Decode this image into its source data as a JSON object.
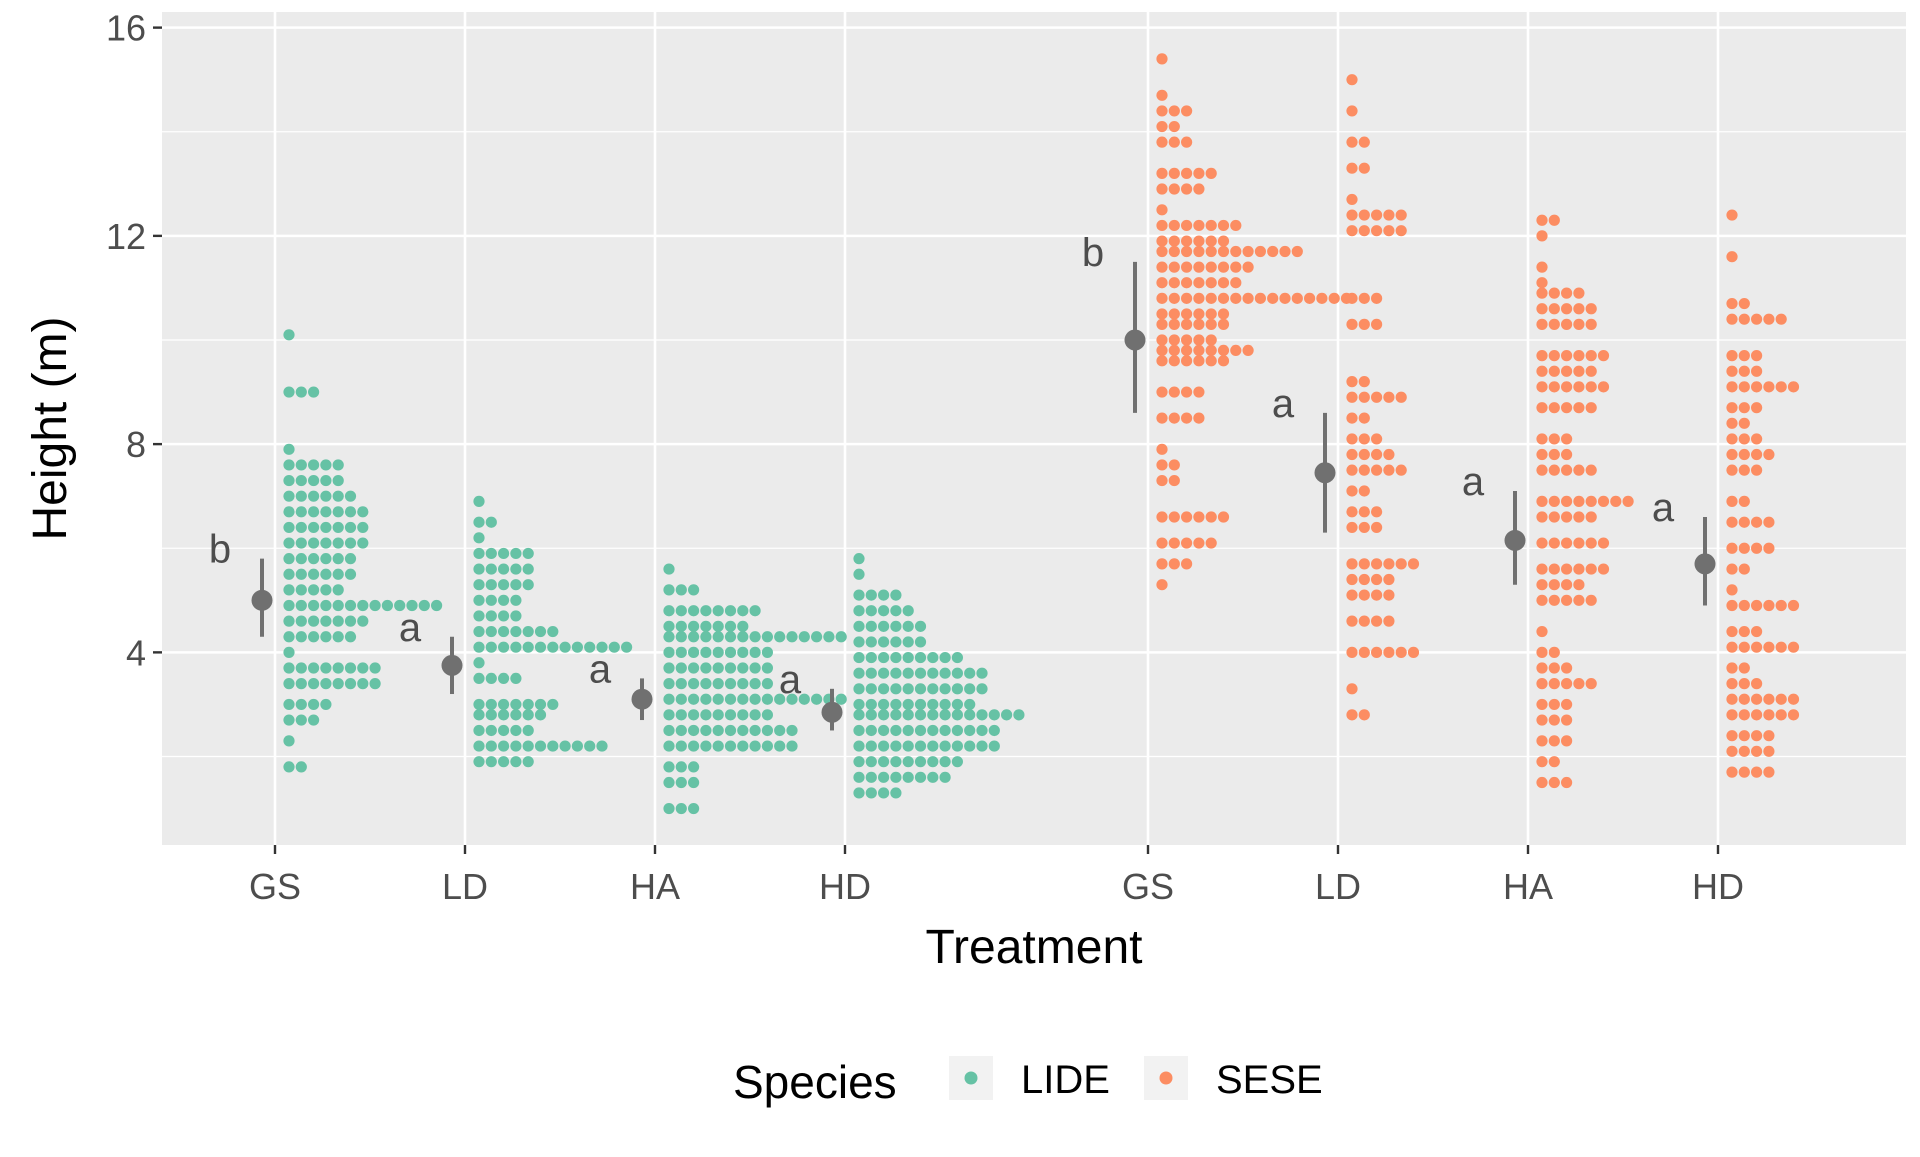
{
  "chart_data": {
    "type": "dotplot",
    "title": "",
    "xlabel": "Treatment",
    "ylabel": "Height (m)",
    "ylim": [
      0.3,
      16.3
    ],
    "yticks": [
      "4",
      "8",
      "12",
      "16"
    ],
    "categories": [
      "GS",
      "LD",
      "HA",
      "HD",
      "GS",
      "LD",
      "HA",
      "HD"
    ],
    "legend": {
      "title": "Species",
      "position": "bottom",
      "items": [
        {
          "label": "LIDE",
          "color": "#66c2a5"
        },
        {
          "label": "SESE",
          "color": "#fc8d62"
        }
      ]
    },
    "summary_color": "#707070",
    "groups": [
      {
        "species": "LIDE",
        "treatment": "GS",
        "mean": 5.0,
        "low": 4.3,
        "high": 5.8,
        "letter": "b",
        "bins": [
          [
            10.1,
            1
          ],
          [
            9.0,
            3
          ],
          [
            7.9,
            1
          ],
          [
            7.6,
            5
          ],
          [
            7.3,
            5
          ],
          [
            7.0,
            6
          ],
          [
            6.7,
            7
          ],
          [
            6.4,
            7
          ],
          [
            6.1,
            7
          ],
          [
            5.8,
            6
          ],
          [
            5.5,
            6
          ],
          [
            5.2,
            5
          ],
          [
            4.9,
            13
          ],
          [
            4.6,
            7
          ],
          [
            4.3,
            6
          ],
          [
            4.0,
            1
          ],
          [
            3.7,
            8
          ],
          [
            3.4,
            8
          ],
          [
            3.0,
            4
          ],
          [
            2.7,
            3
          ],
          [
            2.3,
            1
          ],
          [
            1.8,
            2
          ]
        ]
      },
      {
        "species": "LIDE",
        "treatment": "LD",
        "mean": 3.75,
        "low": 3.2,
        "high": 4.3,
        "letter": "a",
        "bins": [
          [
            6.9,
            1
          ],
          [
            6.5,
            2
          ],
          [
            6.2,
            1
          ],
          [
            5.9,
            5
          ],
          [
            5.6,
            5
          ],
          [
            5.3,
            5
          ],
          [
            5.0,
            4
          ],
          [
            4.7,
            4
          ],
          [
            4.4,
            7
          ],
          [
            4.1,
            13
          ],
          [
            3.8,
            1
          ],
          [
            3.5,
            4
          ],
          [
            3.0,
            7
          ],
          [
            2.8,
            6
          ],
          [
            2.5,
            5
          ],
          [
            2.2,
            11
          ],
          [
            1.9,
            5
          ]
        ]
      },
      {
        "species": "LIDE",
        "treatment": "HA",
        "mean": 3.1,
        "low": 2.7,
        "high": 3.5,
        "letter": "a",
        "bins": [
          [
            5.6,
            1
          ],
          [
            5.2,
            3
          ],
          [
            4.8,
            8
          ],
          [
            4.5,
            7
          ],
          [
            4.3,
            15
          ],
          [
            4.0,
            9
          ],
          [
            3.7,
            9
          ],
          [
            3.4,
            9
          ],
          [
            3.1,
            15
          ],
          [
            2.8,
            9
          ],
          [
            2.5,
            11
          ],
          [
            2.2,
            11
          ],
          [
            1.8,
            3
          ],
          [
            1.5,
            3
          ],
          [
            1.0,
            3
          ]
        ]
      },
      {
        "species": "LIDE",
        "treatment": "HD",
        "mean": 2.85,
        "low": 2.5,
        "high": 3.3,
        "letter": "a",
        "bins": [
          [
            5.8,
            1
          ],
          [
            5.5,
            1
          ],
          [
            5.1,
            4
          ],
          [
            4.8,
            5
          ],
          [
            4.5,
            6
          ],
          [
            4.2,
            6
          ],
          [
            3.9,
            9
          ],
          [
            3.6,
            11
          ],
          [
            3.3,
            11
          ],
          [
            3.0,
            10
          ],
          [
            2.8,
            14
          ],
          [
            2.5,
            12
          ],
          [
            2.2,
            12
          ],
          [
            1.9,
            9
          ],
          [
            1.6,
            8
          ],
          [
            1.3,
            4
          ]
        ]
      },
      {
        "species": "SESE",
        "treatment": "GS",
        "mean": 10.0,
        "low": 8.6,
        "high": 11.5,
        "letter": "b",
        "bins": [
          [
            15.4,
            1
          ],
          [
            14.7,
            1
          ],
          [
            14.4,
            3
          ],
          [
            14.1,
            2
          ],
          [
            13.8,
            3
          ],
          [
            13.2,
            5
          ],
          [
            12.9,
            4
          ],
          [
            12.5,
            1
          ],
          [
            12.2,
            7
          ],
          [
            11.9,
            6
          ],
          [
            11.7,
            12
          ],
          [
            11.4,
            8
          ],
          [
            11.1,
            7
          ],
          [
            10.8,
            16
          ],
          [
            10.5,
            6
          ],
          [
            10.3,
            6
          ],
          [
            10.0,
            5
          ],
          [
            9.8,
            8
          ],
          [
            9.6,
            6
          ],
          [
            9.0,
            4
          ],
          [
            8.5,
            4
          ],
          [
            7.9,
            1
          ],
          [
            7.6,
            2
          ],
          [
            7.3,
            2
          ],
          [
            6.6,
            6
          ],
          [
            6.1,
            5
          ],
          [
            5.7,
            3
          ],
          [
            5.3,
            1
          ]
        ]
      },
      {
        "species": "SESE",
        "treatment": "LD",
        "mean": 7.45,
        "low": 6.3,
        "high": 8.6,
        "letter": "a",
        "bins": [
          [
            15.0,
            1
          ],
          [
            14.4,
            1
          ],
          [
            13.8,
            2
          ],
          [
            13.3,
            2
          ],
          [
            12.7,
            1
          ],
          [
            12.4,
            5
          ],
          [
            12.1,
            5
          ],
          [
            10.8,
            3
          ],
          [
            10.3,
            3
          ],
          [
            9.2,
            2
          ],
          [
            8.9,
            5
          ],
          [
            8.5,
            2
          ],
          [
            8.1,
            3
          ],
          [
            7.8,
            4
          ],
          [
            7.5,
            5
          ],
          [
            7.1,
            2
          ],
          [
            6.7,
            3
          ],
          [
            6.4,
            3
          ],
          [
            5.7,
            6
          ],
          [
            5.4,
            4
          ],
          [
            5.1,
            4
          ],
          [
            4.6,
            4
          ],
          [
            4.0,
            6
          ],
          [
            3.3,
            1
          ],
          [
            2.8,
            2
          ]
        ]
      },
      {
        "species": "SESE",
        "treatment": "HA",
        "mean": 6.15,
        "low": 5.3,
        "high": 7.1,
        "letter": "a",
        "bins": [
          [
            12.3,
            2
          ],
          [
            12.0,
            1
          ],
          [
            11.4,
            1
          ],
          [
            11.1,
            1
          ],
          [
            10.9,
            4
          ],
          [
            10.6,
            5
          ],
          [
            10.3,
            5
          ],
          [
            9.7,
            6
          ],
          [
            9.4,
            5
          ],
          [
            9.1,
            6
          ],
          [
            8.7,
            5
          ],
          [
            8.1,
            3
          ],
          [
            7.8,
            3
          ],
          [
            7.5,
            5
          ],
          [
            6.9,
            8
          ],
          [
            6.6,
            5
          ],
          [
            6.1,
            6
          ],
          [
            5.6,
            6
          ],
          [
            5.3,
            4
          ],
          [
            5.0,
            5
          ],
          [
            4.4,
            1
          ],
          [
            4.0,
            2
          ],
          [
            3.7,
            3
          ],
          [
            3.4,
            5
          ],
          [
            3.0,
            3
          ],
          [
            2.7,
            3
          ],
          [
            2.3,
            3
          ],
          [
            1.9,
            2
          ],
          [
            1.5,
            3
          ]
        ]
      },
      {
        "species": "SESE",
        "treatment": "HD",
        "mean": 5.7,
        "low": 4.9,
        "high": 6.6,
        "letter": "a",
        "bins": [
          [
            12.4,
            1
          ],
          [
            11.6,
            1
          ],
          [
            10.7,
            2
          ],
          [
            10.4,
            5
          ],
          [
            9.7,
            3
          ],
          [
            9.4,
            3
          ],
          [
            9.1,
            6
          ],
          [
            8.7,
            3
          ],
          [
            8.4,
            2
          ],
          [
            8.1,
            3
          ],
          [
            7.8,
            4
          ],
          [
            7.5,
            3
          ],
          [
            6.9,
            2
          ],
          [
            6.5,
            4
          ],
          [
            6.0,
            4
          ],
          [
            5.6,
            2
          ],
          [
            5.2,
            1
          ],
          [
            4.9,
            6
          ],
          [
            4.4,
            3
          ],
          [
            4.1,
            6
          ],
          [
            3.7,
            2
          ],
          [
            3.4,
            3
          ],
          [
            3.1,
            6
          ],
          [
            2.8,
            6
          ],
          [
            2.4,
            4
          ],
          [
            2.1,
            4
          ],
          [
            1.7,
            4
          ]
        ]
      }
    ]
  }
}
